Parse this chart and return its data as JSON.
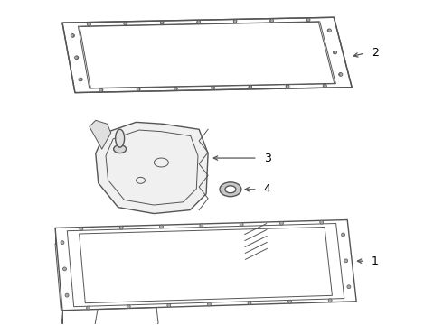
{
  "bg_color": "#ffffff",
  "line_color": "#555555",
  "label_color": "#000000",
  "fig_width": 4.9,
  "fig_height": 3.6,
  "dpi": 100
}
